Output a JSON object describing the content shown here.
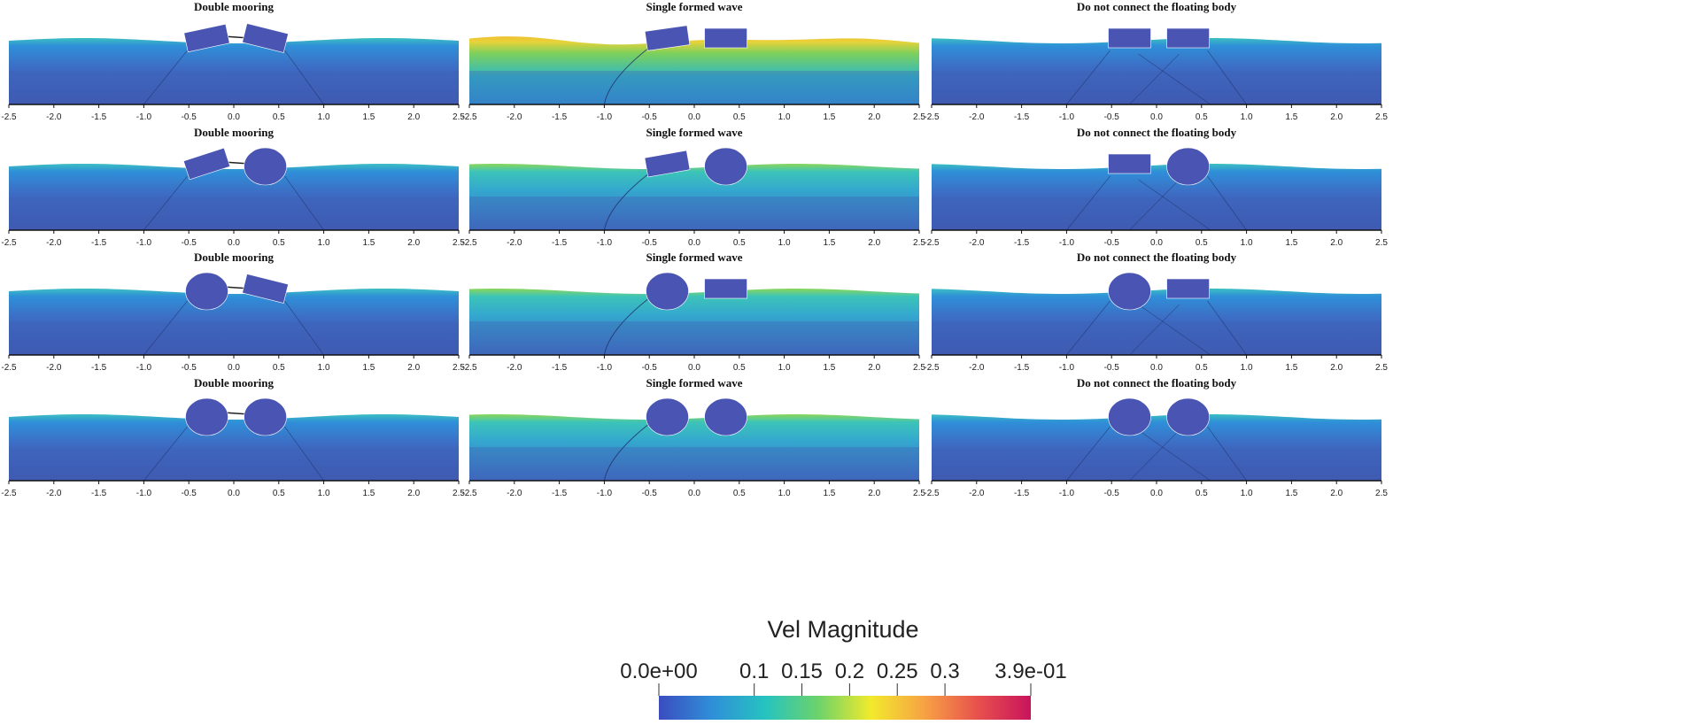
{
  "chart_data": {
    "type": "heatmap",
    "description_rows": 4,
    "panels": [
      {
        "title": "Double mooring",
        "config": "double",
        "bodies": [
          "box",
          "box"
        ],
        "angles": [
          -12,
          14
        ],
        "linked": true
      },
      {
        "title": "Single formed wave",
        "config": "single",
        "bodies": [
          "box",
          "box"
        ],
        "angles": [
          -8,
          0
        ],
        "linked": false
      },
      {
        "title": "Do not connect the floating body",
        "config": "none",
        "bodies": [
          "box",
          "box"
        ],
        "angles": [
          0,
          0
        ],
        "linked": false
      },
      {
        "title": "Double mooring",
        "config": "double",
        "bodies": [
          "box",
          "circle"
        ],
        "angles": [
          -18,
          0
        ],
        "linked": true
      },
      {
        "title": "Single formed wave",
        "config": "single",
        "bodies": [
          "box",
          "circle"
        ],
        "angles": [
          -10,
          0
        ],
        "linked": false
      },
      {
        "title": "Do not connect the floating body",
        "config": "none",
        "bodies": [
          "box",
          "circle"
        ],
        "angles": [
          0,
          0
        ],
        "linked": false
      },
      {
        "title": "Double mooring",
        "config": "double",
        "bodies": [
          "circle",
          "box"
        ],
        "angles": [
          0,
          14
        ],
        "linked": true
      },
      {
        "title": "Single formed wave",
        "config": "single",
        "bodies": [
          "circle",
          "box"
        ],
        "angles": [
          0,
          0
        ],
        "linked": false
      },
      {
        "title": "Do not connect the floating body",
        "config": "none",
        "bodies": [
          "circle",
          "box"
        ],
        "angles": [
          0,
          0
        ],
        "linked": false
      },
      {
        "title": "Double mooring",
        "config": "double",
        "bodies": [
          "circle",
          "circle"
        ],
        "angles": [
          0,
          0
        ],
        "linked": true
      },
      {
        "title": "Single formed wave",
        "config": "single",
        "bodies": [
          "circle",
          "circle"
        ],
        "angles": [
          0,
          0
        ],
        "linked": false
      },
      {
        "title": "Do not connect the floating body",
        "config": "none",
        "bodies": [
          "circle",
          "circle"
        ],
        "angles": [
          0,
          0
        ],
        "linked": false
      }
    ],
    "x_ticks": [
      -2.5,
      -2.0,
      -1.5,
      -1.0,
      -0.5,
      0.0,
      0.5,
      1.0,
      1.5,
      2.0,
      2.5
    ],
    "x_tick_labels": [
      "-2.5",
      "-2.0",
      "-1.5",
      "-1.0",
      "-0.5",
      "0.0",
      "0.5",
      "1.0",
      "1.5",
      "2.0",
      "2.5"
    ],
    "xlim": [
      -2.5,
      2.5
    ],
    "body_centers_x": [
      -0.3,
      0.35
    ],
    "colorbar": {
      "title": "Vel Magnitude",
      "range": [
        0.0,
        0.39
      ],
      "ticks": [
        0.0,
        0.1,
        0.15,
        0.2,
        0.25,
        0.3,
        0.39
      ],
      "tick_labels": [
        "0.0e+00",
        "0.1",
        "0.15",
        "0.2",
        "0.25",
        "0.3",
        "3.9e-01"
      ],
      "colors": [
        "#3b4cc0",
        "#2f8fd8",
        "#26c3c0",
        "#6cd36a",
        "#f2ea2c",
        "#f7a244",
        "#e8514d",
        "#c8135c"
      ]
    }
  },
  "colors": {
    "water_deep": "#3f5fb5",
    "water_mid": "#3f8fcf",
    "body": "#4a55b3",
    "mooring": "#1f2f66"
  }
}
